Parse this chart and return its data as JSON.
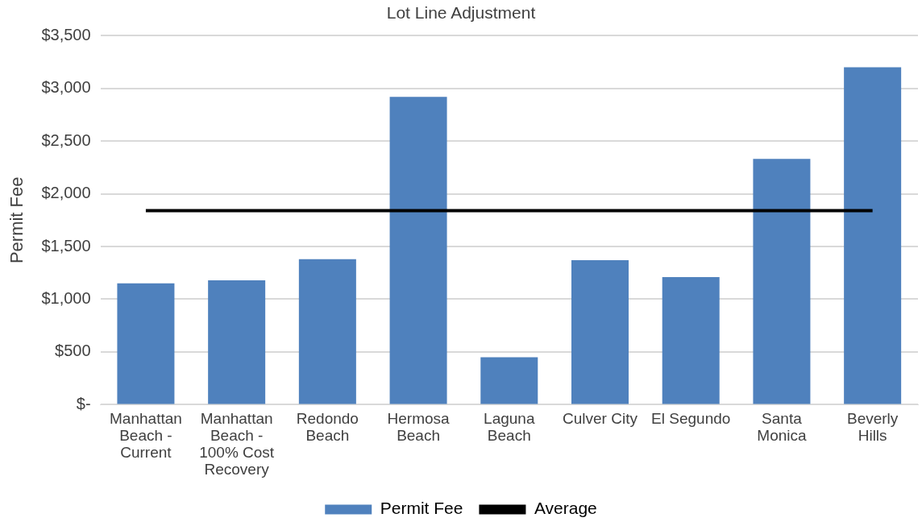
{
  "chart_data": {
    "type": "bar",
    "title": "Lot Line Adjustment",
    "ylabel": "Permit Fee",
    "categories": [
      "Manhattan Beach - Current",
      "Manhattan Beach - 100% Cost Recovery",
      "Redondo Beach",
      "Hermosa Beach",
      "Laguna Beach",
      "Culver City",
      "El Segundo",
      "Santa Monica",
      "Beverly Hills"
    ],
    "series": [
      {
        "name": "Permit Fee",
        "color": "#4f81bd",
        "values": [
          1150,
          1180,
          1380,
          2920,
          450,
          1370,
          1210,
          2330,
          3200
        ]
      },
      {
        "name": "Average",
        "type": "line",
        "color": "#000000",
        "values": [
          1840,
          1840,
          1840,
          1840,
          1840,
          1840,
          1840,
          1840,
          1840
        ]
      }
    ],
    "ylim": [
      0,
      3500
    ],
    "yticks": [
      {
        "value": 0,
        "label": "$-"
      },
      {
        "value": 500,
        "label": "$500"
      },
      {
        "value": 1000,
        "label": "$1,000"
      },
      {
        "value": 1500,
        "label": "$1,500"
      },
      {
        "value": 2000,
        "label": "$2,000"
      },
      {
        "value": 2500,
        "label": "$2,500"
      },
      {
        "value": 3000,
        "label": "$3,000"
      },
      {
        "value": 3500,
        "label": "$3,500"
      }
    ],
    "grid": "y",
    "legend": "bottom",
    "marker": "none",
    "line_style": "solid"
  }
}
